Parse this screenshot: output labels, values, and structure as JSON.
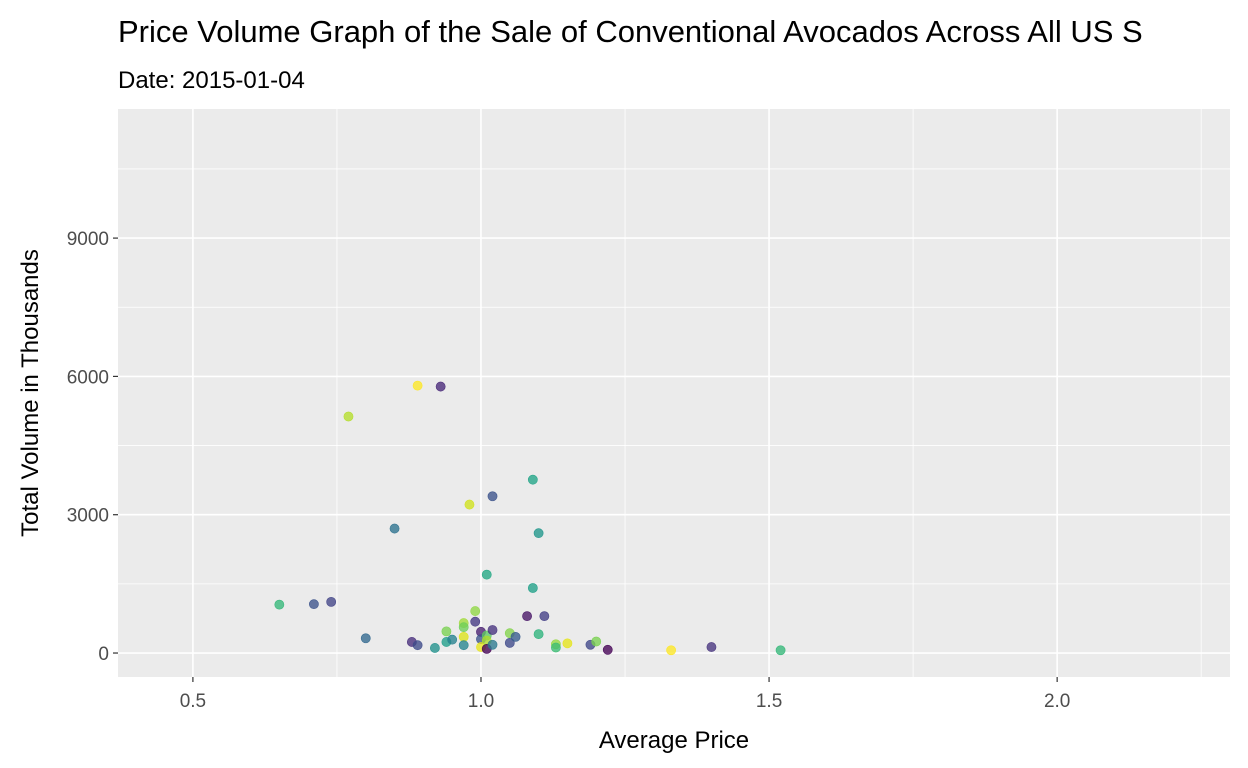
{
  "chart_data": {
    "type": "scatter",
    "title": "Price Volume Graph of the Sale of Conventional Avocados Across All US S",
    "subtitle": "Date: 2015-01-04",
    "xlabel": "Average Price",
    "ylabel": "Total Volume in Thousands",
    "xlim": [
      0.37,
      2.3
    ],
    "ylim": [
      -520,
      11800
    ],
    "x_ticks": [
      0.5,
      1.0,
      1.5,
      2.0
    ],
    "x_tick_labels": [
      "0.5",
      "1.0",
      "1.5",
      "2.0"
    ],
    "y_ticks": [
      0,
      3000,
      6000,
      9000
    ],
    "y_tick_labels": [
      "0",
      "3000",
      "6000",
      "9000"
    ],
    "grid": true,
    "legend": "none",
    "points": [
      {
        "x": 0.65,
        "y": 1050,
        "color": "#35b779"
      },
      {
        "x": 0.71,
        "y": 1060,
        "color": "#3b528b"
      },
      {
        "x": 0.74,
        "y": 1110,
        "color": "#414487"
      },
      {
        "x": 0.77,
        "y": 5130,
        "color": "#b5de2b"
      },
      {
        "x": 0.8,
        "y": 320,
        "color": "#31688e"
      },
      {
        "x": 0.85,
        "y": 2700,
        "color": "#2c728e"
      },
      {
        "x": 0.88,
        "y": 240,
        "color": "#472d7b"
      },
      {
        "x": 0.89,
        "y": 5800,
        "color": "#fde725"
      },
      {
        "x": 0.89,
        "y": 170,
        "color": "#3e4a89"
      },
      {
        "x": 0.92,
        "y": 110,
        "color": "#21918c"
      },
      {
        "x": 0.93,
        "y": 5780,
        "color": "#482878"
      },
      {
        "x": 0.94,
        "y": 470,
        "color": "#7ad151"
      },
      {
        "x": 0.94,
        "y": 240,
        "color": "#1f9e89"
      },
      {
        "x": 0.95,
        "y": 290,
        "color": "#26828e"
      },
      {
        "x": 0.97,
        "y": 650,
        "color": "#a0da39"
      },
      {
        "x": 0.97,
        "y": 560,
        "color": "#6ece58"
      },
      {
        "x": 0.97,
        "y": 350,
        "color": "#dde318"
      },
      {
        "x": 0.97,
        "y": 170,
        "color": "#25848e"
      },
      {
        "x": 0.98,
        "y": 3220,
        "color": "#d0e11c"
      },
      {
        "x": 0.99,
        "y": 910,
        "color": "#8fd744"
      },
      {
        "x": 0.99,
        "y": 680,
        "color": "#443983"
      },
      {
        "x": 1.0,
        "y": 460,
        "color": "#481f70"
      },
      {
        "x": 1.0,
        "y": 300,
        "color": "#3b528b"
      },
      {
        "x": 1.0,
        "y": 130,
        "color": "#e7e419"
      },
      {
        "x": 1.01,
        "y": 1700,
        "color": "#22a884"
      },
      {
        "x": 1.01,
        "y": 380,
        "color": "#5ec962"
      },
      {
        "x": 1.01,
        "y": 270,
        "color": "#addc30"
      },
      {
        "x": 1.01,
        "y": 90,
        "color": "#440154"
      },
      {
        "x": 1.02,
        "y": 3400,
        "color": "#3b528b"
      },
      {
        "x": 1.02,
        "y": 500,
        "color": "#46327e"
      },
      {
        "x": 1.02,
        "y": 180,
        "color": "#2a788e"
      },
      {
        "x": 1.05,
        "y": 430,
        "color": "#84d44b"
      },
      {
        "x": 1.05,
        "y": 220,
        "color": "#3e4989"
      },
      {
        "x": 1.06,
        "y": 350,
        "color": "#365c8d"
      },
      {
        "x": 1.08,
        "y": 800,
        "color": "#481567"
      },
      {
        "x": 1.09,
        "y": 3760,
        "color": "#20a486"
      },
      {
        "x": 1.09,
        "y": 1410,
        "color": "#1fa088"
      },
      {
        "x": 1.1,
        "y": 2600,
        "color": "#1f968b"
      },
      {
        "x": 1.1,
        "y": 410,
        "color": "#2eb37c"
      },
      {
        "x": 1.11,
        "y": 800,
        "color": "#433e85"
      },
      {
        "x": 1.13,
        "y": 190,
        "color": "#95d840"
      },
      {
        "x": 1.13,
        "y": 120,
        "color": "#3dbc74"
      },
      {
        "x": 1.15,
        "y": 210,
        "color": "#e5e419"
      },
      {
        "x": 1.19,
        "y": 180,
        "color": "#3f4788"
      },
      {
        "x": 1.2,
        "y": 250,
        "color": "#7ad151"
      },
      {
        "x": 1.22,
        "y": 70,
        "color": "#440154"
      },
      {
        "x": 1.33,
        "y": 60,
        "color": "#fde725"
      },
      {
        "x": 1.4,
        "y": 130,
        "color": "#46337e"
      },
      {
        "x": 1.52,
        "y": 60,
        "color": "#35b779"
      }
    ]
  }
}
